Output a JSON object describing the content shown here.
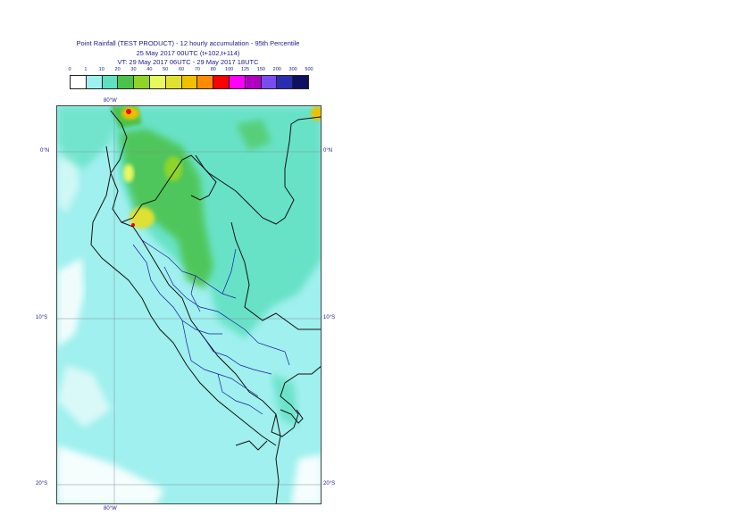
{
  "title": {
    "line1": "Point Rainfall (TEST PRODUCT) - 12 hourly accumulation - 95th Percentile",
    "line2": "25 May 2017 00UTC (t+102,t+114)",
    "line3": "VT: 29 May 2017 06UTC - 29 May 2017 18UTC"
  },
  "legend": {
    "labels": [
      "0",
      "1",
      "10",
      "20",
      "30",
      "40",
      "50",
      "60",
      "70",
      "80",
      "100",
      "125",
      "150",
      "200",
      "300",
      "500"
    ],
    "colors": [
      "#ffffff",
      "#9ff0ee",
      "#5fe0c0",
      "#4cc24a",
      "#8fd42a",
      "#e8f860",
      "#e0e030",
      "#f0c000",
      "#ff8c00",
      "#ff0000",
      "#ff00ff",
      "#b000c0",
      "#7a4cf0",
      "#2c2cb0",
      "#101060"
    ]
  },
  "axes": {
    "top_lon": "80°W",
    "bottom_lon": "80°W",
    "lat_0": "0°N",
    "lat_10": "10°S",
    "lat_20": "20°S"
  }
}
